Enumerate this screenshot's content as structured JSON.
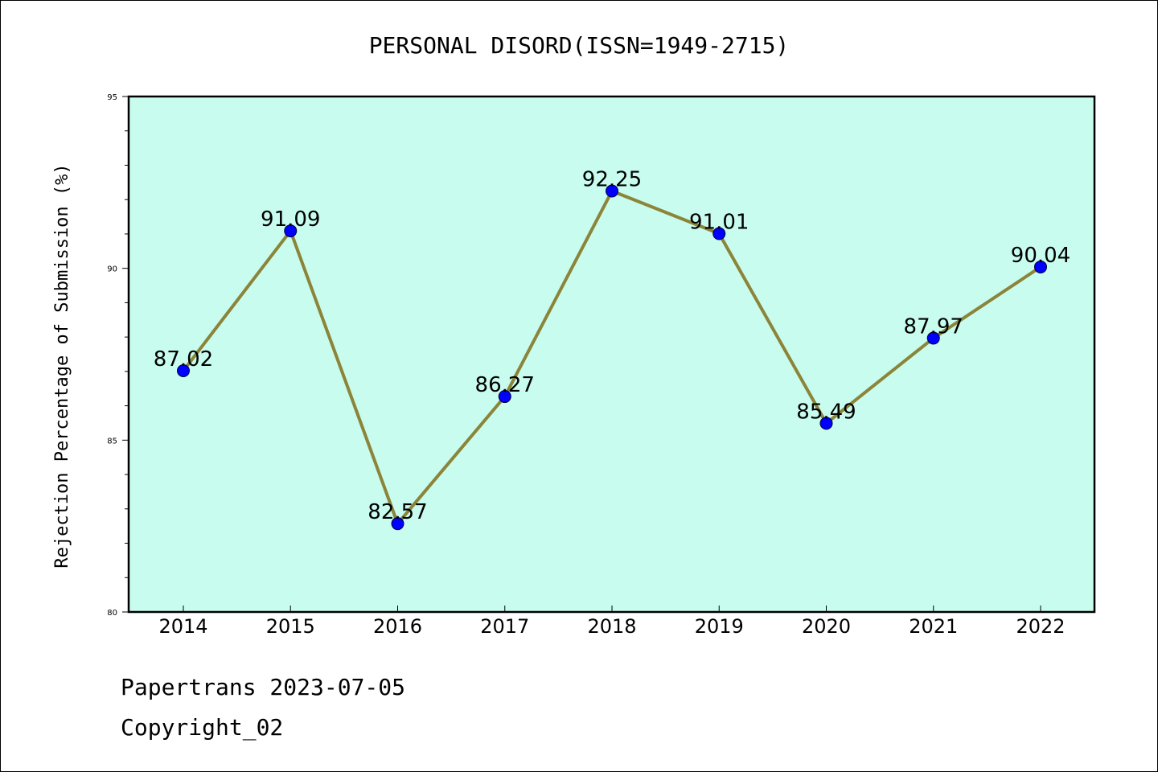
{
  "chart_data": {
    "type": "line",
    "title": "PERSONAL DISORD(ISSN=1949-2715)",
    "xlabel": "",
    "ylabel": "Rejection Percentage of Submission (%)",
    "categories": [
      "2014",
      "2015",
      "2016",
      "2017",
      "2018",
      "2019",
      "2020",
      "2021",
      "2022"
    ],
    "series": [
      {
        "values": [
          87.02,
          91.09,
          82.57,
          86.27,
          92.25,
          91.01,
          85.49,
          87.97,
          90.04
        ]
      }
    ],
    "data_labels": [
      "87.02",
      "91.09",
      "82.57",
      "86.27",
      "92.25",
      "91.01",
      "85.49",
      "87.97",
      "90.04"
    ],
    "ylim": [
      80,
      95
    ],
    "yticks": [
      "80",
      "85",
      "90",
      "95"
    ],
    "grid": false,
    "colors": {
      "plot_background": "#c8fcee",
      "line": "#8b8439",
      "marker": "#0000ff"
    }
  },
  "footer": {
    "line1": "Papertrans 2023-07-05",
    "line2": "Copyright_02"
  }
}
